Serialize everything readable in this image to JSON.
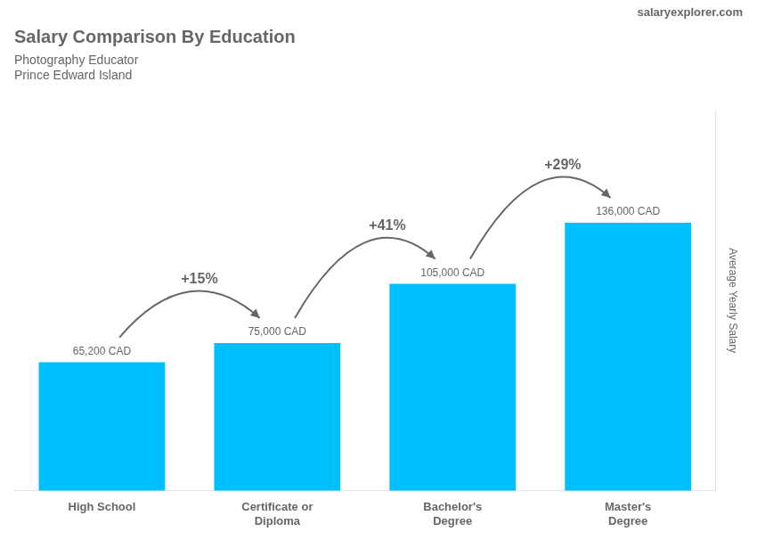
{
  "chart_data": {
    "type": "bar",
    "title": "Salary Comparison By Education",
    "subtitle": [
      "Photography Educator",
      "Prince Edward Island"
    ],
    "source": "salaryexplorer.com",
    "categories": [
      "High School",
      "Certificate or\nDiploma",
      "Bachelor's\nDegree",
      "Master's\nDegree"
    ],
    "values": [
      65200,
      75000,
      105000,
      136000
    ],
    "value_labels": [
      "65,200 CAD",
      "75,000 CAD",
      "105,000 CAD",
      "136,000 CAD"
    ],
    "data_labels": true,
    "color": "#00bfff",
    "annotations": [
      "+15%",
      "+41%",
      "+29%"
    ],
    "ylabel": "Average Yearly Salary",
    "ylim": [
      0,
      193120
    ],
    "yticks": [],
    "tick_labels": "x",
    "grid": false
  }
}
